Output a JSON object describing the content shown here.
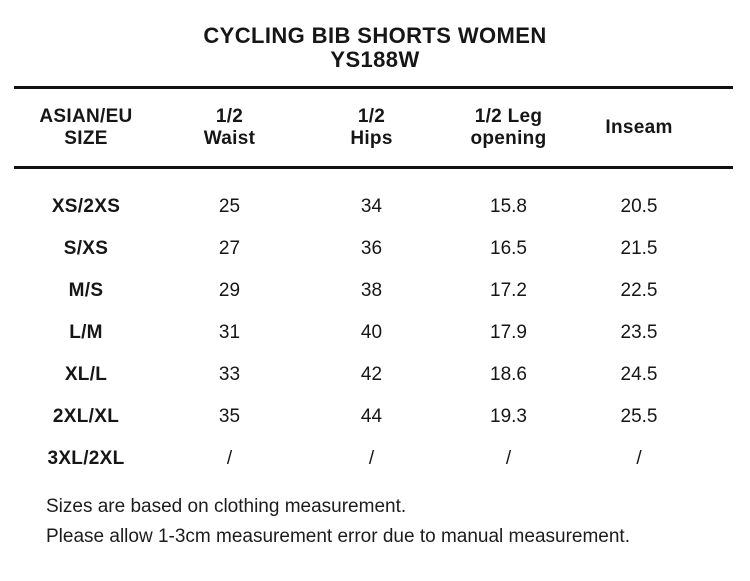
{
  "page": {
    "title": "CYCLING BIB SHORTS WOMEN",
    "model_code": "YS188W"
  },
  "table": {
    "headers": [
      "ASIAN/EU\nSIZE",
      "1/2\nWaist",
      "1/2\nHips",
      "1/2 Leg\nopening",
      "Inseam"
    ],
    "rows": [
      [
        "XS/2XS",
        "25",
        "34",
        "15.8",
        "20.5"
      ],
      [
        "S/XS",
        "27",
        "36",
        "16.5",
        "21.5"
      ],
      [
        "M/S",
        "29",
        "38",
        "17.2",
        "22.5"
      ],
      [
        "L/M",
        "31",
        "40",
        "17.9",
        "23.5"
      ],
      [
        "XL/L",
        "33",
        "42",
        "18.6",
        "24.5"
      ],
      [
        "2XL/XL",
        "35",
        "44",
        "19.3",
        "25.5"
      ],
      [
        "3XL/2XL",
        "/",
        "/",
        "/",
        "/"
      ]
    ]
  },
  "notes": [
    "Sizes are based on clothing measurement.",
    "Please allow 1-3cm measurement error due to manual measurement."
  ],
  "colors": {
    "text": "#161616",
    "rule": "#111111",
    "background": "#ffffff"
  }
}
